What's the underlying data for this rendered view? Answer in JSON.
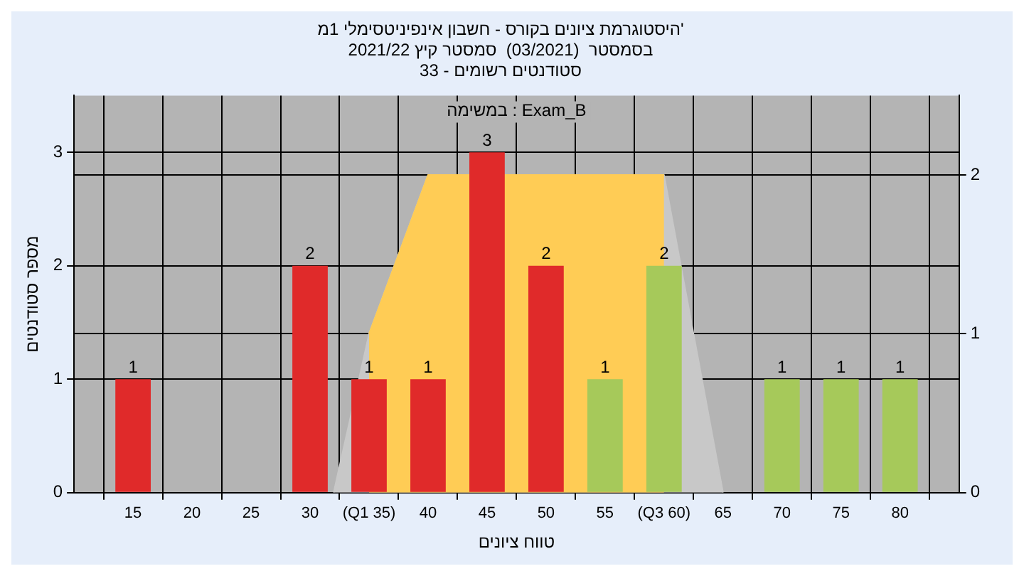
{
  "chart_data": {
    "type": "bar",
    "title": "היסטוגרמת ציונים בקורס - חשבון אינפיניטסימלי 1מ'",
    "subtitle": "בסמסטר  (03/2021)  סמסטר קיץ 2021/22\nסטודנטים רשומים - 33",
    "xlabel": "טווח ציונים",
    "ylabel": "מספר סטודנטים",
    "annotations": [
      "במשימה : Exam_B"
    ],
    "x": [
      15,
      20,
      25,
      30,
      35,
      40,
      45,
      50,
      55,
      60,
      65,
      70,
      75,
      80
    ],
    "xlim": [
      10,
      85
    ],
    "xticks": [
      15,
      20,
      25,
      30,
      {
        "value": 35,
        "label": "(Q1 35)"
      },
      40,
      45,
      50,
      55,
      {
        "value": 60,
        "label": "(Q3 60)"
      },
      65,
      70,
      75,
      80
    ],
    "ylim": [
      0,
      3.5
    ],
    "yticks": [
      0,
      1,
      2,
      3
    ],
    "y2lim": [
      0,
      2.5
    ],
    "y2ticks": [
      0,
      1,
      2
    ],
    "grid": true,
    "legend": false,
    "series": [
      {
        "values": [
          1,
          0,
          0,
          2,
          1,
          1,
          3,
          2,
          1,
          2,
          0,
          1,
          1,
          1
        ],
        "colors": [
          "#e02a2a",
          "#e02a2a",
          "#e02a2a",
          "#e02a2a",
          "#e02a2a",
          "#e02a2a",
          "#e02a2a",
          "#e02a2a",
          "#a6c95a",
          "#a6c95a",
          "#a6c95a",
          "#a6c95a",
          "#a6c95a",
          "#a6c95a"
        ],
        "value_labels": [
          "1",
          null,
          null,
          "2",
          "1",
          "1",
          "3",
          "2",
          "1",
          "2",
          null,
          "1",
          "1",
          "1"
        ]
      },
      {
        "type": "area",
        "axis": "y2",
        "color": "#c8c8c8",
        "x": [
          32,
          35,
          40,
          60,
          65
        ],
        "values": [
          0,
          1,
          2,
          2,
          0
        ]
      },
      {
        "type": "area",
        "axis": "y2",
        "color": "#ffcc55",
        "x": [
          35,
          40,
          60
        ],
        "values": [
          1,
          2,
          2
        ]
      }
    ]
  }
}
